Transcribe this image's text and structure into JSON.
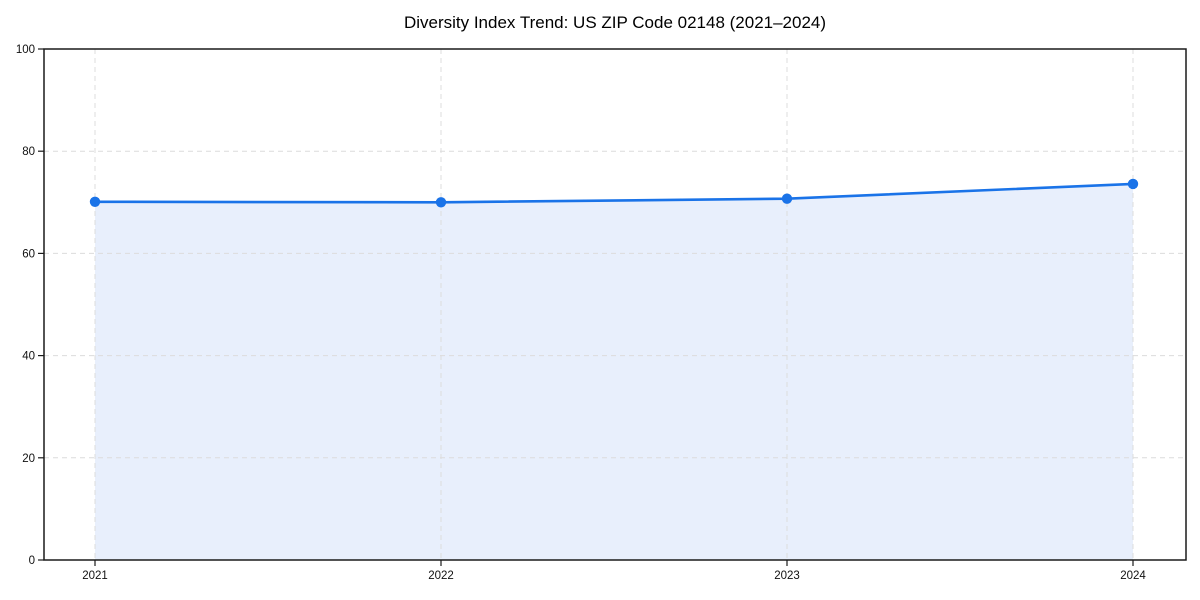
{
  "chart_data": {
    "type": "area",
    "title": "Diversity Index Trend: US ZIP Code 02148 (2021–2024)",
    "series_name": "Diversity Index",
    "categories": [
      "2021",
      "2022",
      "2023",
      "2024"
    ],
    "values": [
      70.1,
      70.0,
      70.7,
      73.6
    ],
    "xlabel": "",
    "ylabel": "",
    "ylim": [
      0,
      100
    ],
    "yticks": [
      0,
      20,
      40,
      60,
      80,
      100
    ],
    "grid": true,
    "grid_style": "dashed",
    "legend": "none",
    "marker": "circle",
    "colors": {
      "line": "#1a73e8",
      "marker": "#1a73e8",
      "area_fill": "#e8effc",
      "grid": "#dcdcdc",
      "spine": "#1a1a1a",
      "tick_text": "#111111",
      "title_text": "#000000",
      "background": "#ffffff"
    }
  }
}
